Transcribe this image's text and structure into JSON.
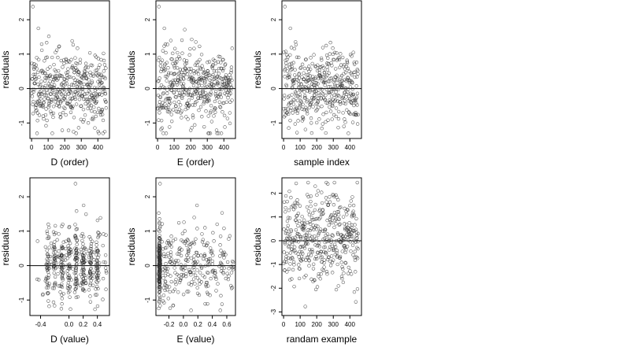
{
  "figure": {
    "layout": "2 rows x 3 columns of scatter plots",
    "point_style": "open circle",
    "point_color": "#333333",
    "reference_line": "horizontal line at y = 0"
  },
  "chart_data": [
    {
      "type": "scatter",
      "title": "",
      "xlabel": "D (order)",
      "ylabel": "residuals",
      "xlim": [
        -10,
        470
      ],
      "ylim": [
        -1.45,
        2.55
      ],
      "xticks": [
        0,
        100,
        200,
        300,
        400
      ],
      "xtick_labels": [
        "0",
        "100",
        "200",
        "300",
        "400"
      ],
      "yticks": [
        -1,
        0,
        1,
        2
      ],
      "ytick_labels": [
        "-1",
        "0",
        "1",
        "2"
      ],
      "hline": 0,
      "grid": false,
      "legend": "none",
      "n_points": 450,
      "x_values": "order index 1 to 450",
      "y_range": [
        -1.3,
        2.4
      ],
      "noise_seed": 11
    },
    {
      "type": "scatter",
      "title": "",
      "xlabel": "E (order)",
      "ylabel": "residuals",
      "xlim": [
        -10,
        470
      ],
      "ylim": [
        -1.45,
        2.55
      ],
      "xticks": [
        0,
        100,
        200,
        300,
        400
      ],
      "xtick_labels": [
        "0",
        "100",
        "200",
        "300",
        "400"
      ],
      "yticks": [
        -1,
        0,
        1,
        2
      ],
      "ytick_labels": [
        "-1",
        "0",
        "1",
        "2"
      ],
      "hline": 0,
      "grid": false,
      "legend": "none",
      "n_points": 450,
      "x_values": "order index 1 to 450",
      "y_range": [
        -1.3,
        2.4
      ],
      "noise_seed": 23
    },
    {
      "type": "scatter",
      "title": "",
      "xlabel": "sample index",
      "ylabel": "residuals",
      "xlim": [
        -10,
        470
      ],
      "ylim": [
        -1.45,
        2.55
      ],
      "xticks": [
        0,
        100,
        200,
        300,
        400
      ],
      "xtick_labels": [
        "0",
        "100",
        "200",
        "300",
        "400"
      ],
      "yticks": [
        -1,
        0,
        1,
        2
      ],
      "ytick_labels": [
        "-1",
        "0",
        "1",
        "2"
      ],
      "hline": 0,
      "grid": false,
      "legend": "none",
      "n_points": 450,
      "x_values": "order index 1 to 450",
      "y_range": [
        -1.3,
        2.4
      ],
      "noise_seed": 37
    },
    {
      "type": "scatter",
      "title": "",
      "xlabel": "D (value)",
      "ylabel": "residuals",
      "xlim": [
        -0.55,
        0.57
      ],
      "ylim": [
        -1.45,
        2.55
      ],
      "xticks": [
        -0.4,
        0.0,
        0.2,
        0.4
      ],
      "xtick_labels": [
        "-0.4",
        "0.0",
        "0.2",
        "0.4"
      ],
      "yticks": [
        -1,
        0,
        1,
        2
      ],
      "ytick_labels": [
        "-1",
        "0",
        "1",
        "2"
      ],
      "hline": 0,
      "grid": false,
      "legend": "none",
      "n_points": 450,
      "x_range": [
        -0.5,
        0.55
      ],
      "x_clusters": [
        -0.3,
        -0.2,
        -0.1,
        0.0,
        0.1,
        0.2,
        0.3,
        0.4
      ],
      "y_range": [
        -1.3,
        2.4
      ],
      "noise_seed": 41
    },
    {
      "type": "scatter",
      "title": "",
      "xlabel": "E (value)",
      "ylabel": "residuals",
      "xlim": [
        -0.38,
        0.72
      ],
      "ylim": [
        -1.45,
        2.55
      ],
      "xticks": [
        -0.2,
        0.0,
        0.2,
        0.4,
        0.6
      ],
      "xtick_labels": [
        "-0.2",
        "0.0",
        "0.2",
        "0.4",
        "0.6"
      ],
      "yticks": [
        -1,
        0,
        1,
        2
      ],
      "ytick_labels": [
        "-1",
        "0",
        "1",
        "2"
      ],
      "hline": 0,
      "grid": false,
      "legend": "none",
      "n_points": 450,
      "x_range": [
        -0.35,
        0.7
      ],
      "dense_column_at": -0.33,
      "y_range": [
        -1.3,
        2.4
      ],
      "noise_seed": 53
    },
    {
      "type": "scatter",
      "title": "",
      "xlabel": "randam example",
      "ylabel": "residuals",
      "xlim": [
        -10,
        470
      ],
      "ylim": [
        -3.15,
        2.65
      ],
      "xticks": [
        0,
        100,
        200,
        300,
        400
      ],
      "xtick_labels": [
        "0",
        "100",
        "200",
        "300",
        "400"
      ],
      "yticks": [
        -3,
        -2,
        -1,
        0,
        1,
        2
      ],
      "ytick_labels": [
        "-3",
        "-2",
        "-1",
        "0",
        "1",
        "2"
      ],
      "hline": 0,
      "grid": false,
      "legend": "none",
      "n_points": 450,
      "x_values": "order index 1 to 450",
      "y_range": [
        -3.0,
        2.45
      ],
      "noise_seed": 67
    }
  ]
}
